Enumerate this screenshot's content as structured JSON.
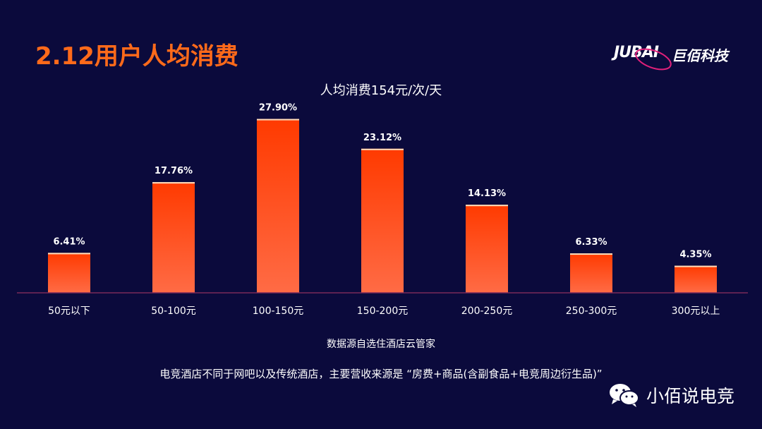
{
  "slide": {
    "title": "2.12用户人均消费",
    "logo_latin": "JUBAI",
    "logo_cn": "巨佰科技",
    "source": "数据源自选住酒店云管家",
    "note": "电竞酒店不同于网吧以及传统酒店，主要营收来源是 “房费+商品(含副食品+电竞周边衍生品)”",
    "watermark": "小佰说电竞"
  },
  "chart_data": {
    "type": "bar",
    "title": "人均消费154元/次/天",
    "categories": [
      "50元以下",
      "50-100元",
      "100-150元",
      "150-200元",
      "200-250元",
      "250-300元",
      "300元以上"
    ],
    "values": [
      6.41,
      17.76,
      27.9,
      23.12,
      14.13,
      6.33,
      4.35
    ],
    "data_labels": [
      "6.41%",
      "17.76%",
      "27.90%",
      "23.12%",
      "14.13%",
      "6.33%",
      "4.35%"
    ],
    "unit": "%",
    "ylim": [
      0,
      30
    ],
    "grid": false,
    "legend": "none",
    "colors": {
      "bar_top": "#ff3a00",
      "bar_bottom": "#ff6b45",
      "baseline": "#7a2a5a",
      "cap": "#ffe0c0"
    }
  }
}
